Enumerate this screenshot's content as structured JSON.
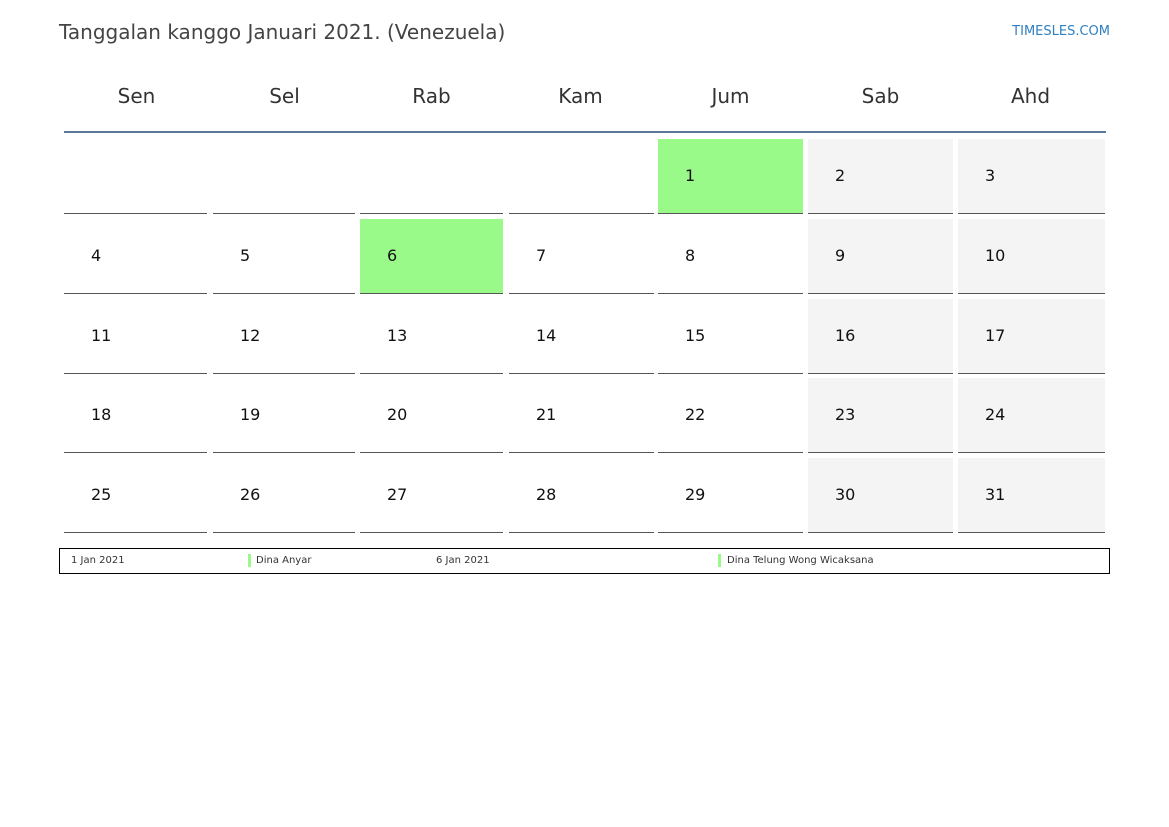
{
  "header": {
    "title": "Tanggalan kanggo Januari 2021. (Venezuela)",
    "site": "TIMESLES.COM"
  },
  "calendar": {
    "weekdays": [
      "Sen",
      "Sel",
      "Rab",
      "Kam",
      "Jum",
      "Sab",
      "Ahd"
    ],
    "weeks": [
      [
        "",
        "",
        "",
        "",
        "1",
        "2",
        "3"
      ],
      [
        "4",
        "5",
        "6",
        "7",
        "8",
        "9",
        "10"
      ],
      [
        "11",
        "12",
        "13",
        "14",
        "15",
        "16",
        "17"
      ],
      [
        "18",
        "19",
        "20",
        "21",
        "22",
        "23",
        "24"
      ],
      [
        "25",
        "26",
        "27",
        "28",
        "29",
        "30",
        "31"
      ]
    ],
    "holidays": [
      "1",
      "6"
    ],
    "weekend_columns": [
      5,
      6
    ],
    "colors": {
      "holiday": "#9afa89",
      "weekend": "#f4f4f4",
      "header_rule": "#5b7797",
      "site_link": "#2f7fc1"
    }
  },
  "legend": {
    "entries": [
      {
        "date": "1 Jan 2021",
        "name": "Dina Anyar"
      },
      {
        "date": "6 Jan 2021",
        "name": "Dina Telung Wong Wicaksana"
      }
    ]
  }
}
